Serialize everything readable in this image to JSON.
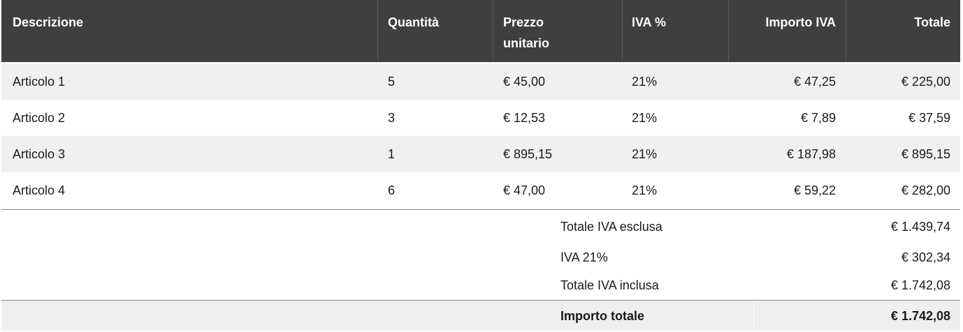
{
  "table": {
    "headers": {
      "description": "Descrizione",
      "quantity": "Quantità",
      "unit_price_line1": "Prezzo",
      "unit_price_line2": "unitario",
      "vat_pct": "IVA %",
      "vat_amount": "Importo IVA",
      "total": "Totale"
    },
    "rows": [
      {
        "description": "Articolo 1",
        "quantity": "5",
        "unit_price": "€ 45,00",
        "vat_pct": "21%",
        "vat_amount": "€ 47,25",
        "total": "€ 225,00"
      },
      {
        "description": "Articolo 2",
        "quantity": "3",
        "unit_price": "€ 12,53",
        "vat_pct": "21%",
        "vat_amount": "€ 7,89",
        "total": "€ 37,59"
      },
      {
        "description": "Articolo 3",
        "quantity": "1",
        "unit_price": "€ 895,15",
        "vat_pct": "21%",
        "vat_amount": "€ 187,98",
        "total": "€ 895,15"
      },
      {
        "description": "Articolo 4",
        "quantity": "6",
        "unit_price": "€ 47,00",
        "vat_pct": "21%",
        "vat_amount": "€ 59,22",
        "total": "€ 282,00"
      }
    ]
  },
  "summary": {
    "subtotal_label": "Totale IVA esclusa",
    "subtotal_value": "€ 1.439,74",
    "vat_label": "IVA 21%",
    "vat_value": "€ 302,34",
    "with_vat_label": "Totale IVA inclusa",
    "with_vat_value": "€ 1.742,08",
    "grand_total_label": "Importo totale",
    "grand_total_value": "€ 1.742,08"
  },
  "colors": {
    "header_bg": "#3f3f3f",
    "header_text": "#ffffff",
    "row_stripe": "#f0f0f0",
    "grand_total_bg": "#efefef"
  }
}
